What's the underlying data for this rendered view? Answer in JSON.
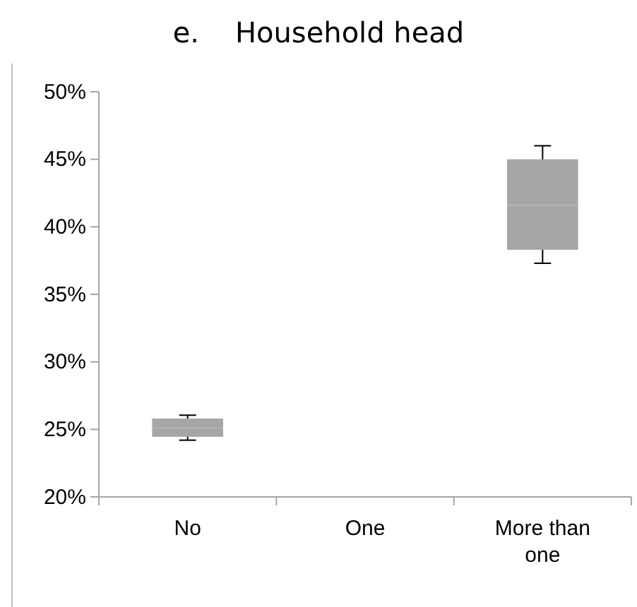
{
  "chart_data": {
    "type": "box",
    "title": "e.    Household head",
    "categories": [
      "No",
      "One",
      "More than one"
    ],
    "color": "#a6a6a6",
    "boxes": [
      {
        "low": 24.2,
        "q1": 24.45,
        "median": 25.1,
        "q3": 25.8,
        "high": 26.05
      },
      null,
      {
        "low": 37.3,
        "q1": 38.3,
        "median": 41.6,
        "q3": 45.0,
        "high": 46.0
      }
    ],
    "ylim": [
      20,
      50
    ],
    "yticks": [
      {
        "value": 20,
        "label": "20%"
      },
      {
        "value": 25,
        "label": "25%"
      },
      {
        "value": 30,
        "label": "30%"
      },
      {
        "value": 35,
        "label": "35%"
      },
      {
        "value": 40,
        "label": "40%"
      },
      {
        "value": 45,
        "label": "45%"
      },
      {
        "value": 50,
        "label": "50%"
      }
    ]
  }
}
